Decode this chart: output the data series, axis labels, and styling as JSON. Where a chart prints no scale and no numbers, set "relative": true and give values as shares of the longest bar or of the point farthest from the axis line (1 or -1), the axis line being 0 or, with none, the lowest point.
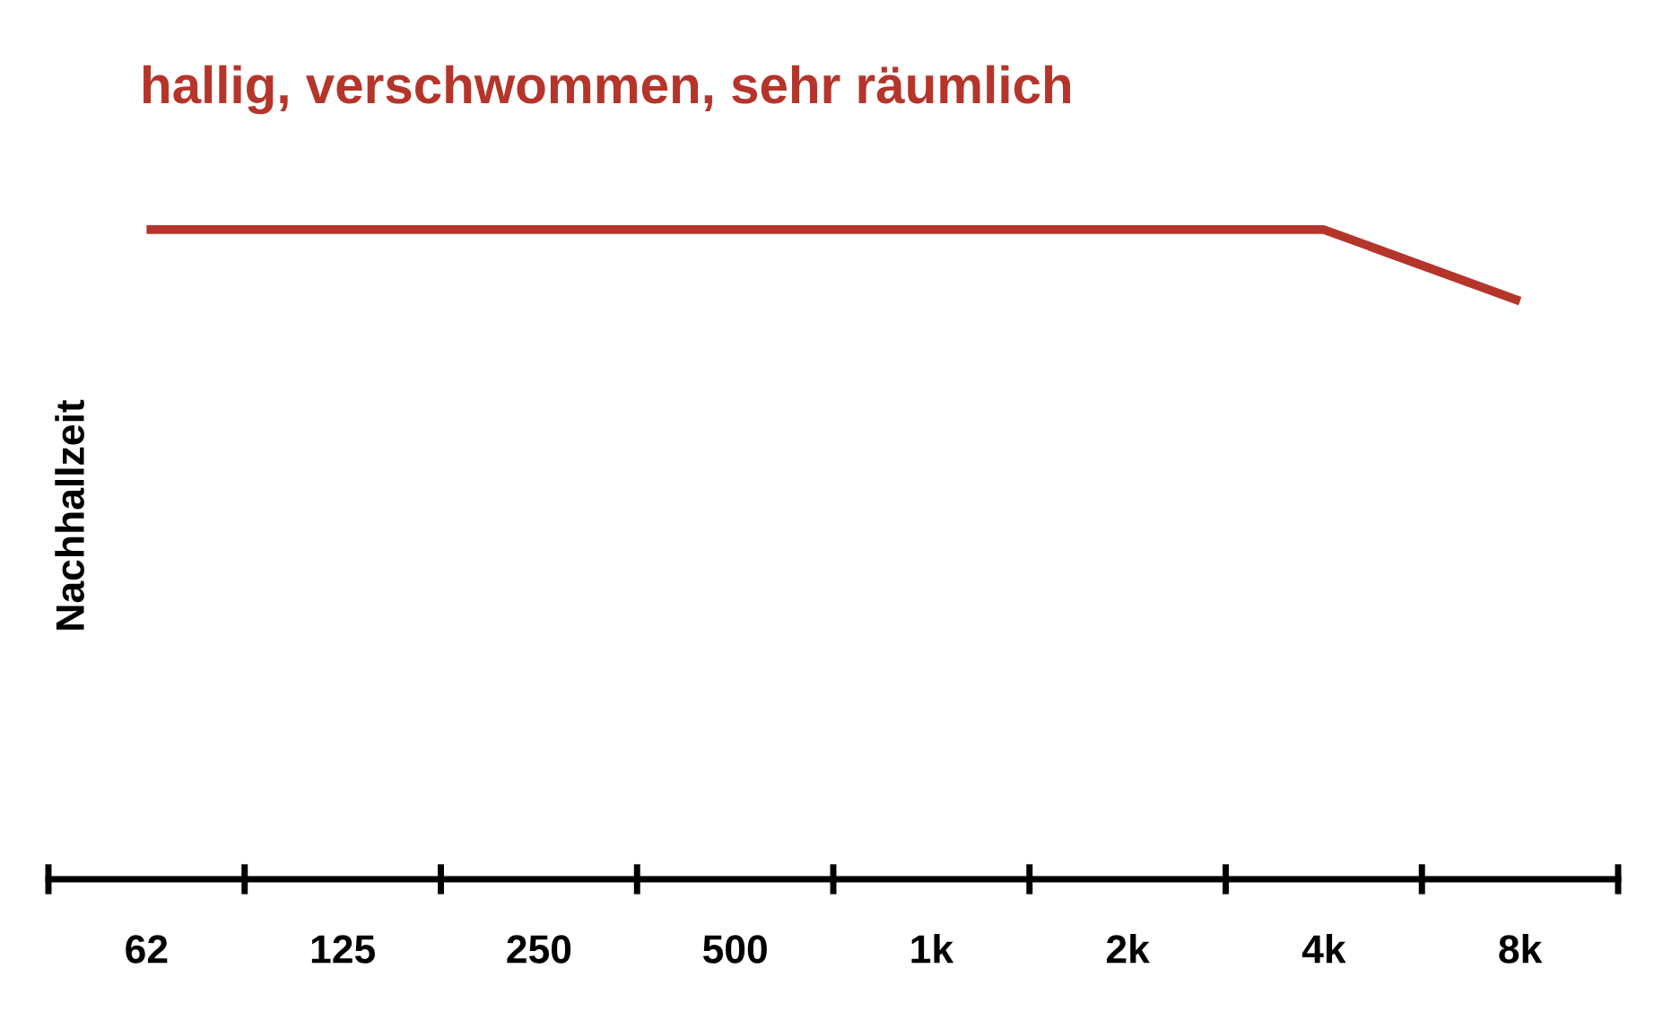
{
  "chart_data": {
    "type": "line",
    "title": "hallig, verschwommen, sehr räumlich",
    "ylabel": "Nachhallzeit",
    "categories": [
      "62",
      "125",
      "250",
      "500",
      "1k",
      "2k",
      "4k",
      "8k"
    ],
    "series": [
      {
        "color": "#b5352b",
        "values": [
          1,
          1,
          1,
          1,
          1,
          1,
          1,
          0.89
        ]
      }
    ],
    "relative": true
  }
}
